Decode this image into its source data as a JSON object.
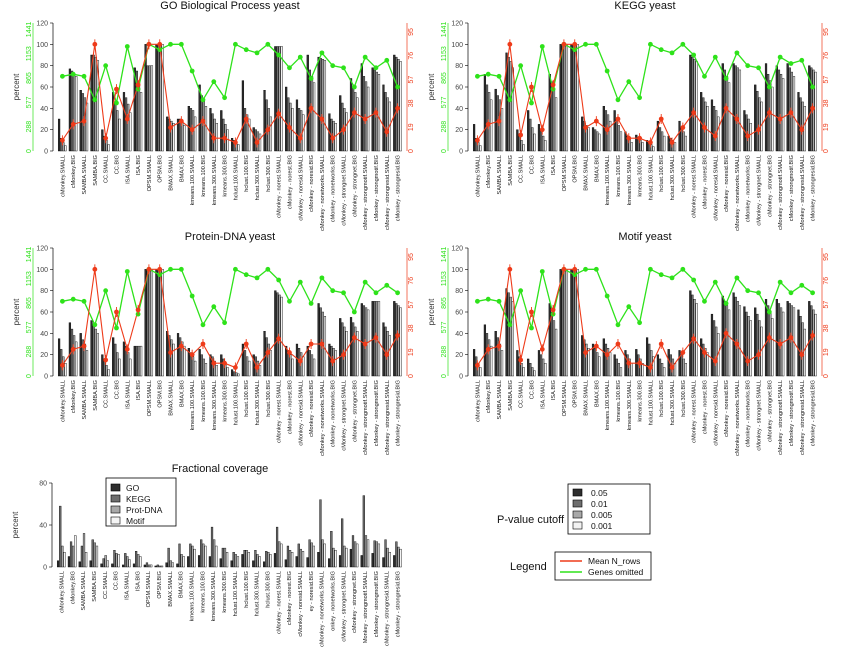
{
  "colors": {
    "p005": "#2e2e2e",
    "p001": "#6e6e6e",
    "p0005": "#a8a8a8",
    "p0001": "#f2f2f2",
    "go": "#2e2e2e",
    "kegg": "#6e6e6e",
    "prot": "#a8a8a8",
    "motif": "#f4f4f4",
    "mean_nrows": "#ee3b1a",
    "genes_omitted": "#2ee21a",
    "gridline": "#000000"
  },
  "labels_full": [
    "cMonkey.SMALL",
    "cMonkey.BIG",
    "SAMBA.SMALL",
    "SAMBA.BIG",
    "CC.SMALL",
    "CC.BIG",
    "ISA.SMALL",
    "ISA.BIG",
    "OPSM.SMALL",
    "OPSM.BIG",
    "BMAX.SMALL",
    "BMAX.BIG",
    "kmeans.100.SMALL",
    "kmeans.100.BIG",
    "kmeans.300.SMALL",
    "kmeans.300.BIG",
    "hclust.100.SMALL",
    "hclust.100.BIG",
    "hclust.300.SMALL",
    "hclust.300.BIG",
    "cMonkey - norest.SMALL",
    "cMonkey - norest.BIG",
    "cMonkey - noresid.SMALL",
    "cMonkey - noresid.BIG",
    "cMonkey - nonetworks.SMALL",
    "cMonkey - nonetworks.BIG",
    "cMonkey - strongnet.SMALL",
    "cMonkey - strongnet.BIG",
    "cMonkey - strongmotif.SMALL",
    "cMonkey - strongmotif.BIG",
    "cMonkey - strongresid.SMALL",
    "cMonkey - strongresid.BIG"
  ],
  "labels_fc": [
    "cMonkey.SMALL",
    "cMonkey.BIG",
    "SAMBA.SMALL",
    "SAMBA.BIG",
    "CC.SMALL",
    "CC.BIG",
    "ISA.SMALL",
    "ISA.BIG",
    "OPSM.SMALL",
    "OPSM.BIG",
    "BMAX.SMALL",
    "BMAX.BIG",
    "kmeans.100.SMALL",
    "kmeans.100.BIG",
    "kmeans.300.SMALL",
    "kmeans.300.BIG",
    "hclust.100.SMALL",
    "hclust.100.BIG",
    "hclust.300.SMALL",
    "hclust.300.BIG",
    "cMonkey - norest.SMALL",
    "cMonkey - norest.BIG",
    "cMonkey - noresid.SMALL",
    "ey - noresid.BIG",
    "cMonkey - nonetworks.SMALL",
    "onkey - nonetworks.BIG",
    "cMonkey - strongnet.SMALL",
    "cMonkey - strongnet.BIG",
    "Monkey - strongmotif.SMALL",
    "cMonkey - strongmotif.BIG",
    "cMonkey - strongresid.SMALL",
    "cMonkey - strongresid.BIG"
  ],
  "legend": {
    "pvalue_title": "P-value cutoff",
    "pvalue_items": [
      "0.05",
      "0.01",
      "0.005",
      "0.001"
    ],
    "lines_title": "Legend",
    "line_items": [
      "Mean N_rows",
      "Genes omitted"
    ]
  },
  "chart_data": [
    {
      "type": "bar",
      "title": "GO Biological Process  yeast",
      "ylabel": "percent",
      "ylim": [
        0,
        120
      ],
      "y_ticks": [
        0,
        20,
        40,
        60,
        80,
        100,
        120
      ],
      "right_ticks_red": [
        0,
        19,
        38,
        57,
        76,
        95
      ],
      "right_ticks_green": [
        0,
        288,
        577,
        865,
        1153,
        1441
      ],
      "categories_ref": "labels_full",
      "series": [
        {
          "name": "0.05",
          "values": [
            30,
            77,
            57,
            90,
            20,
            55,
            55,
            78,
            100,
            100,
            32,
            30,
            42,
            62,
            40,
            38,
            12,
            66,
            22,
            57,
            98,
            60,
            48,
            90,
            88,
            35,
            52,
            68,
            82,
            78,
            62,
            90
          ]
        },
        {
          "name": "0.01",
          "values": [
            12,
            75,
            54,
            90,
            14,
            45,
            50,
            75,
            80,
            100,
            30,
            30,
            40,
            52,
            35,
            30,
            10,
            40,
            20,
            48,
            98,
            50,
            40,
            76,
            87,
            30,
            45,
            60,
            70,
            76,
            55,
            88
          ]
        },
        {
          "name": "0.005",
          "values": [
            8,
            72,
            50,
            88,
            10,
            38,
            44,
            65,
            80,
            100,
            28,
            28,
            38,
            48,
            30,
            25,
            8,
            34,
            18,
            40,
            98,
            45,
            38,
            70,
            86,
            28,
            40,
            55,
            65,
            74,
            50,
            86
          ]
        },
        {
          "name": "0.001",
          "values": [
            5,
            70,
            45,
            85,
            6,
            30,
            36,
            55,
            80,
            100,
            26,
            24,
            32,
            42,
            26,
            20,
            6,
            30,
            16,
            32,
            98,
            40,
            34,
            64,
            85,
            26,
            36,
            50,
            60,
            72,
            46,
            84
          ]
        }
      ],
      "mean_nrows_pct": [
        10,
        25,
        28,
        100,
        12,
        58,
        30,
        62,
        100,
        100,
        22,
        28,
        20,
        28,
        12,
        12,
        8,
        30,
        8,
        20,
        35,
        22,
        12,
        40,
        30,
        12,
        20,
        36,
        30,
        36,
        18,
        40
      ],
      "genes_omitted_pct": [
        70,
        72,
        70,
        48,
        80,
        45,
        98,
        58,
        100,
        95,
        100,
        100,
        75,
        48,
        65,
        50,
        100,
        95,
        92,
        100,
        90,
        78,
        88,
        68,
        92,
        80,
        78,
        60,
        88,
        78,
        85,
        60
      ]
    },
    {
      "type": "bar",
      "title": "KEGG yeast",
      "ylabel": "percent",
      "ylim": [
        0,
        120
      ],
      "y_ticks": [
        0,
        20,
        40,
        60,
        80,
        100,
        120
      ],
      "right_ticks_red": [
        0,
        19,
        38,
        57,
        76,
        95
      ],
      "right_ticks_green": [
        0,
        288,
        577,
        865,
        1153,
        1441
      ],
      "categories_ref": "labels_full",
      "series": [
        {
          "name": "0.05",
          "values": [
            25,
            72,
            58,
            92,
            20,
            38,
            25,
            72,
            100,
            100,
            32,
            22,
            42,
            38,
            18,
            15,
            10,
            28,
            14,
            28,
            90,
            55,
            48,
            82,
            82,
            38,
            62,
            82,
            80,
            82,
            55,
            80
          ]
        },
        {
          "name": "0.01",
          "values": [
            12,
            62,
            52,
            88,
            15,
            30,
            20,
            65,
            100,
            100,
            28,
            20,
            38,
            30,
            14,
            12,
            8,
            22,
            12,
            22,
            88,
            50,
            42,
            76,
            80,
            34,
            56,
            72,
            76,
            78,
            50,
            78
          ]
        },
        {
          "name": "0.005",
          "values": [
            8,
            55,
            48,
            84,
            10,
            22,
            14,
            58,
            100,
            100,
            24,
            18,
            34,
            24,
            12,
            10,
            6,
            18,
            10,
            18,
            86,
            46,
            38,
            70,
            78,
            30,
            50,
            66,
            72,
            74,
            46,
            76
          ]
        },
        {
          "name": "0.001",
          "values": [
            5,
            48,
            40,
            78,
            6,
            16,
            10,
            50,
            100,
            100,
            22,
            16,
            28,
            18,
            8,
            8,
            4,
            14,
            8,
            14,
            84,
            42,
            32,
            64,
            76,
            26,
            46,
            60,
            68,
            70,
            42,
            74
          ]
        }
      ],
      "mean_nrows_pct": [
        10,
        25,
        28,
        100,
        15,
        60,
        20,
        62,
        100,
        100,
        22,
        28,
        20,
        30,
        12,
        12,
        8,
        30,
        8,
        22,
        36,
        22,
        14,
        40,
        30,
        14,
        20,
        36,
        30,
        36,
        20,
        40
      ],
      "genes_omitted_pct": [
        70,
        72,
        70,
        48,
        80,
        45,
        98,
        58,
        100,
        95,
        100,
        100,
        75,
        48,
        65,
        50,
        100,
        95,
        92,
        100,
        90,
        70,
        88,
        68,
        92,
        80,
        78,
        60,
        88,
        82,
        85,
        60
      ]
    },
    {
      "type": "bar",
      "title": "Protein-DNA yeast",
      "ylabel": "percent",
      "ylim": [
        0,
        120
      ],
      "y_ticks": [
        0,
        20,
        40,
        60,
        80,
        100,
        120
      ],
      "right_ticks_red": [
        0,
        19,
        38,
        57,
        76,
        95
      ],
      "right_ticks_green": [
        0,
        288,
        577,
        865,
        1153,
        1441
      ],
      "categories_ref": "labels_full",
      "series": [
        {
          "name": "0.05",
          "values": [
            35,
            50,
            40,
            52,
            20,
            36,
            32,
            28,
            100,
            100,
            42,
            40,
            26,
            25,
            20,
            20,
            6,
            30,
            20,
            42,
            80,
            28,
            30,
            28,
            68,
            30,
            54,
            55,
            68,
            70,
            50,
            70
          ]
        },
        {
          "name": "0.01",
          "values": [
            25,
            44,
            34,
            48,
            15,
            30,
            28,
            28,
            100,
            100,
            38,
            36,
            22,
            20,
            18,
            16,
            4,
            24,
            18,
            36,
            78,
            24,
            26,
            24,
            64,
            28,
            50,
            50,
            66,
            70,
            46,
            68
          ]
        },
        {
          "name": "0.005",
          "values": [
            18,
            38,
            30,
            44,
            10,
            22,
            22,
            28,
            100,
            100,
            34,
            32,
            18,
            16,
            14,
            12,
            3,
            18,
            14,
            30,
            76,
            20,
            22,
            20,
            60,
            26,
            46,
            46,
            64,
            70,
            42,
            66
          ]
        },
        {
          "name": "0.001",
          "values": [
            12,
            32,
            24,
            40,
            6,
            16,
            16,
            28,
            100,
            100,
            30,
            28,
            14,
            12,
            10,
            8,
            2,
            14,
            10,
            24,
            74,
            16,
            18,
            16,
            56,
            24,
            42,
            42,
            62,
            70,
            38,
            64
          ]
        }
      ],
      "mean_nrows_pct": [
        10,
        25,
        28,
        100,
        15,
        60,
        25,
        62,
        100,
        100,
        22,
        28,
        20,
        30,
        12,
        12,
        8,
        30,
        8,
        22,
        35,
        22,
        14,
        30,
        30,
        14,
        20,
        36,
        30,
        36,
        20,
        38
      ],
      "genes_omitted_pct": [
        70,
        72,
        70,
        48,
        80,
        45,
        98,
        58,
        100,
        95,
        100,
        100,
        75,
        48,
        65,
        50,
        100,
        95,
        92,
        100,
        90,
        70,
        88,
        68,
        92,
        80,
        78,
        60,
        88,
        78,
        85,
        78
      ]
    },
    {
      "type": "bar",
      "title": "Motif yeast",
      "ylabel": "percent",
      "ylim": [
        0,
        120
      ],
      "y_ticks": [
        0,
        20,
        40,
        60,
        80,
        100,
        120
      ],
      "right_ticks_red": [
        0,
        19,
        38,
        57,
        76,
        95
      ],
      "right_ticks_green": [
        0,
        288,
        577,
        865,
        1153,
        1441
      ],
      "categories_ref": "labels_full",
      "series": [
        {
          "name": "0.05",
          "values": [
            25,
            48,
            42,
            82,
            24,
            16,
            24,
            68,
            100,
            100,
            38,
            30,
            35,
            20,
            24,
            25,
            36,
            20,
            25,
            24,
            80,
            35,
            58,
            75,
            78,
            65,
            64,
            72,
            72,
            70,
            62,
            70
          ]
        },
        {
          "name": "0.01",
          "values": [
            18,
            40,
            36,
            78,
            18,
            12,
            20,
            60,
            100,
            100,
            34,
            26,
            30,
            16,
            20,
            20,
            30,
            16,
            20,
            20,
            76,
            30,
            52,
            70,
            74,
            60,
            58,
            66,
            68,
            68,
            56,
            66
          ]
        },
        {
          "name": "0.005",
          "values": [
            12,
            34,
            30,
            74,
            12,
            8,
            16,
            52,
            100,
            100,
            30,
            22,
            26,
            12,
            16,
            16,
            24,
            12,
            16,
            16,
            72,
            26,
            46,
            66,
            70,
            56,
            52,
            60,
            64,
            66,
            50,
            62
          ]
        },
        {
          "name": "0.001",
          "values": [
            8,
            28,
            24,
            70,
            8,
            5,
            12,
            44,
            100,
            100,
            26,
            18,
            22,
            8,
            12,
            12,
            18,
            8,
            12,
            12,
            68,
            22,
            40,
            62,
            66,
            52,
            46,
            54,
            60,
            64,
            44,
            58
          ]
        }
      ],
      "mean_nrows_pct": [
        10,
        25,
        28,
        100,
        15,
        60,
        25,
        62,
        100,
        100,
        22,
        28,
        20,
        30,
        12,
        12,
        8,
        30,
        8,
        22,
        35,
        22,
        14,
        40,
        30,
        14,
        20,
        36,
        30,
        36,
        20,
        38
      ],
      "genes_omitted_pct": [
        70,
        72,
        70,
        48,
        80,
        45,
        98,
        58,
        100,
        95,
        100,
        100,
        75,
        48,
        65,
        50,
        100,
        95,
        92,
        100,
        90,
        70,
        88,
        68,
        92,
        80,
        78,
        60,
        88,
        78,
        85,
        78
      ]
    },
    {
      "type": "bar",
      "title": "Fractional coverage",
      "ylabel": "percent",
      "ylim": [
        0,
        80
      ],
      "y_ticks": [
        0,
        40,
        80
      ],
      "categories_ref": "labels_fc",
      "legend_position": "top-left",
      "series": [
        {
          "name": "GO",
          "values": [
            6,
            10,
            5,
            6,
            3,
            3,
            2,
            3,
            2,
            1,
            4,
            3,
            10,
            11,
            10,
            8,
            6,
            12,
            6,
            5,
            13,
            7,
            10,
            9,
            14,
            8,
            11,
            17,
            11,
            13,
            9,
            11
          ]
        },
        {
          "name": "KEGG",
          "values": [
            58,
            24,
            20,
            26,
            8,
            16,
            13,
            15,
            4,
            2,
            18,
            22,
            22,
            26,
            38,
            18,
            14,
            16,
            16,
            15,
            38,
            20,
            22,
            26,
            64,
            34,
            46,
            30,
            68,
            25,
            26,
            24
          ]
        },
        {
          "name": "Prot-DNA",
          "values": [
            20,
            20,
            32,
            23,
            11,
            13,
            10,
            12,
            2,
            1,
            6,
            12,
            20,
            22,
            26,
            18,
            12,
            16,
            12,
            14,
            24,
            16,
            17,
            23,
            26,
            18,
            20,
            24,
            30,
            24,
            18,
            19
          ]
        },
        {
          "name": "Motif",
          "values": [
            14,
            30,
            14,
            20,
            6,
            12,
            7,
            10,
            2,
            1,
            4,
            10,
            17,
            20,
            20,
            14,
            10,
            14,
            10,
            12,
            22,
            14,
            15,
            20,
            22,
            16,
            18,
            22,
            26,
            22,
            14,
            17
          ]
        }
      ]
    }
  ]
}
